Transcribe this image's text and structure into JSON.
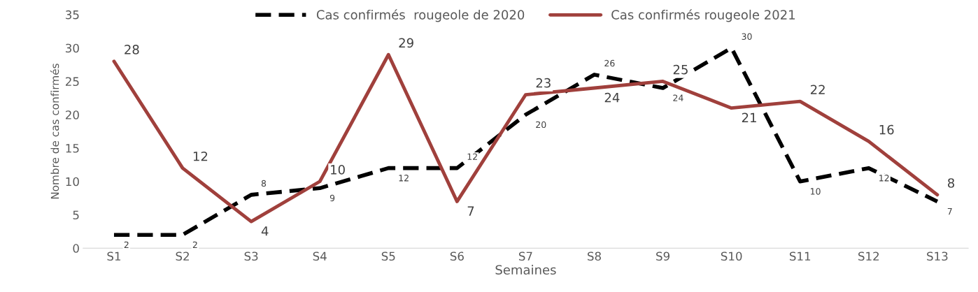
{
  "chart_data": {
    "type": "line",
    "xlabel": "Semaines",
    "ylabel": "Nombre de cas confirmés",
    "categories": [
      "S1",
      "S2",
      "S3",
      "S4",
      "S5",
      "S6",
      "S7",
      "S8",
      "S9",
      "S10",
      "S11",
      "S12",
      "S13"
    ],
    "series": [
      {
        "name": "Cas confirmés  rougeole de 2020",
        "color": "#000000",
        "line_style": "dashed",
        "values": [
          2,
          2,
          8,
          9,
          12,
          12,
          20,
          26,
          24,
          30,
          10,
          12,
          7
        ]
      },
      {
        "name": "Cas confirmés rougeole 2021",
        "color": "#a0403c",
        "line_style": "solid",
        "values": [
          28,
          12,
          4,
          10,
          29,
          7,
          23,
          24,
          25,
          21,
          22,
          16,
          8
        ]
      }
    ],
    "ylim": [
      0,
      35
    ],
    "yticks": [
      0,
      5,
      10,
      15,
      20,
      25,
      30,
      35
    ],
    "grid": false,
    "legend": "top",
    "data_labels": true,
    "marker": "none"
  }
}
